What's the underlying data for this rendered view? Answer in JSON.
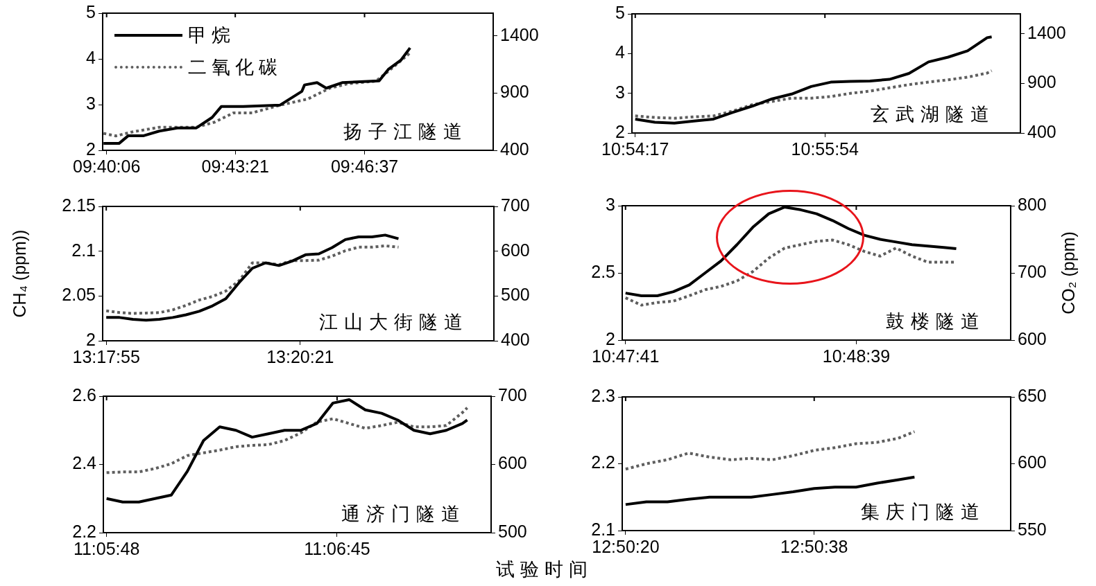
{
  "chart_data": [
    {
      "type": "line",
      "legend": "top left",
      "annotations": [
        "扬子江隧道"
      ],
      "xlim": [
        9.66667,
        9.83111
      ],
      "xticks": [
        {
          "value": 9.66833,
          "label": "09:40:06"
        },
        {
          "value": 9.7225,
          "label": "09:43:21"
        },
        {
          "value": 9.77694,
          "label": "09:46:37"
        }
      ],
      "ylim": [
        2,
        5
      ],
      "yticks": [
        2,
        3,
        4,
        5
      ],
      "y2lim": [
        400,
        1600
      ],
      "y2ticks": [
        400,
        900,
        1400
      ],
      "series": [
        {
          "name": "甲烷",
          "color": "#000000",
          "line_style": "solid",
          "x": [
            9.66703,
            9.67355,
            9.67747,
            9.68397,
            9.6905,
            9.69833,
            9.70611,
            9.71278,
            9.71667,
            9.72583,
            9.74139,
            9.75056,
            9.75167,
            9.75694,
            9.76083,
            9.7675,
            9.78306,
            9.78694,
            9.79222,
            9.79611
          ],
          "values": [
            2.15,
            2.15,
            2.32,
            2.32,
            2.42,
            2.49,
            2.49,
            2.72,
            2.96,
            2.96,
            2.99,
            3.29,
            3.43,
            3.48,
            3.36,
            3.48,
            3.52,
            3.77,
            3.97,
            4.24
          ]
        },
        {
          "name": "二氧化碳",
          "color": "#5e5e5e",
          "line_style": "dotted",
          "axis": "y2",
          "x": [
            9.66703,
            9.67222,
            9.67878,
            9.6905,
            9.70611,
            9.71389,
            9.72181,
            9.72964,
            9.74139,
            9.75306,
            9.76222,
            9.77,
            9.78167,
            9.78694,
            9.79611
          ],
          "values": [
            548,
            526,
            559,
            602,
            602,
            647,
            728,
            728,
            795,
            849,
            943,
            983,
            1005,
            1091,
            1252
          ]
        }
      ]
    },
    {
      "type": "line",
      "annotations": [
        "玄武湖隧道"
      ],
      "xlim": [
        10.90425,
        10.95944
      ],
      "xticks": [
        {
          "value": 10.90472,
          "label": "10:54:17"
        },
        {
          "value": 10.93167,
          "label": "10:55:54"
        }
      ],
      "ylim": [
        2,
        5
      ],
      "yticks": [
        2,
        3,
        4,
        5
      ],
      "y2lim": [
        400,
        1600
      ],
      "y2ticks": [
        400,
        900,
        1400
      ],
      "x": [
        10.90472,
        10.9075,
        10.91028,
        10.91306,
        10.91583,
        10.91861,
        10.92139,
        10.92417,
        10.92694,
        10.92972,
        10.9325,
        10.93528,
        10.93806,
        10.94083,
        10.94361,
        10.94639,
        10.94917,
        10.95194,
        10.95472,
        10.95536
      ],
      "series": [
        {
          "color": "#000000",
          "line_style": "solid",
          "values": [
            2.35,
            2.27,
            2.25,
            2.3,
            2.35,
            2.52,
            2.68,
            2.86,
            2.98,
            3.17,
            3.28,
            3.3,
            3.31,
            3.35,
            3.5,
            3.79,
            3.91,
            4.07,
            4.4,
            4.42
          ]
        },
        {
          "color": "#5e5e5e",
          "line_style": "dotted",
          "axis": "y2",
          "values": [
            572,
            556,
            549,
            562,
            572,
            621,
            686,
            718,
            751,
            751,
            767,
            799,
            822,
            855,
            887,
            913,
            936,
            962,
            1004,
            1027
          ]
        }
      ]
    },
    {
      "type": "line",
      "ylabel": "CH₄ (ppm))",
      "annotations": [
        "江山大街隧道"
      ],
      "xlim": [
        13.29786,
        13.37967
      ],
      "xticks": [
        {
          "value": 13.29861,
          "label": "13:17:55"
        },
        {
          "value": 13.33917,
          "label": "13:20:21"
        }
      ],
      "ylim": [
        2,
        2.15
      ],
      "yticks": [
        2,
        2.05,
        2.1,
        2.15
      ],
      "y2lim": [
        400,
        700
      ],
      "y2ticks": [
        400,
        500,
        600,
        700
      ],
      "x": [
        13.29861,
        13.30139,
        13.30417,
        13.30694,
        13.30972,
        13.3125,
        13.31528,
        13.31806,
        13.32083,
        13.32361,
        13.32639,
        13.32917,
        13.33194,
        13.33472,
        13.3375,
        13.34028,
        13.34306,
        13.34583,
        13.34861,
        13.35139,
        13.35417,
        13.35694,
        13.35972
      ],
      "series": [
        {
          "color": "#000000",
          "line_style": "solid",
          "values": [
            2.026,
            2.026,
            2.024,
            2.023,
            2.024,
            2.026,
            2.029,
            2.033,
            2.039,
            2.047,
            2.065,
            2.081,
            2.087,
            2.084,
            2.089,
            2.096,
            2.097,
            2.104,
            2.113,
            2.116,
            2.116,
            2.118,
            2.114
          ]
        },
        {
          "color": "#5e5e5e",
          "line_style": "dotted",
          "axis": "y2",
          "values": [
            467,
            463,
            461,
            462,
            463,
            469,
            479,
            491,
            499,
            511,
            534,
            574,
            574,
            570,
            579,
            579,
            580,
            589,
            601,
            609,
            609,
            612,
            609
          ]
        }
      ]
    },
    {
      "type": "line",
      "y2label": "CO₂ (ppm)",
      "annotations": [
        "鼓楼隧道"
      ],
      "xlim": [
        10.79449,
        10.82161
      ],
      "xticks": [
        {
          "value": 10.79472,
          "label": "10:47:41"
        },
        {
          "value": 10.81083,
          "label": "10:48:39"
        }
      ],
      "ylim": [
        2,
        3
      ],
      "yticks": [
        2,
        2.5,
        3
      ],
      "y2lim": [
        600,
        800
      ],
      "y2ticks": [
        600,
        700,
        800
      ],
      "x": [
        10.79472,
        10.79583,
        10.79694,
        10.79806,
        10.79917,
        10.80028,
        10.80139,
        10.8025,
        10.80361,
        10.80472,
        10.80583,
        10.80694,
        10.80806,
        10.80917,
        10.81028,
        10.81139,
        10.8125,
        10.81361,
        10.81472,
        10.81583,
        10.81694,
        10.81781
      ],
      "series": [
        {
          "color": "#000000",
          "line_style": "solid",
          "values": [
            2.35,
            2.33,
            2.33,
            2.36,
            2.41,
            2.5,
            2.59,
            2.71,
            2.84,
            2.94,
            2.99,
            2.97,
            2.94,
            2.89,
            2.83,
            2.78,
            2.75,
            2.73,
            2.71,
            2.7,
            2.69,
            2.68
          ]
        },
        {
          "color": "#5e5e5e",
          "line_style": "dotted",
          "axis": "y2",
          "values": [
            663,
            652,
            656,
            658,
            666,
            675,
            680,
            688,
            702,
            722,
            737,
            742,
            747,
            749,
            742,
            732,
            725,
            737,
            725,
            716,
            716,
            716
          ]
        }
      ]
    },
    {
      "type": "line",
      "xlabel": "试验时间",
      "annotations": [
        "通济门隧道"
      ],
      "xlim": [
        11.09645,
        11.12308
      ],
      "xticks": [
        {
          "value": 11.09667,
          "label": "11:05:48"
        },
        {
          "value": 11.1125,
          "label": "11:06:45"
        }
      ],
      "ylim": [
        2.2,
        2.6
      ],
      "yticks": [
        2.2,
        2.4,
        2.6
      ],
      "y2lim": [
        500,
        700
      ],
      "y2ticks": [
        500,
        600,
        700
      ],
      "x": [
        11.09667,
        11.09778,
        11.09889,
        11.1,
        11.10111,
        11.10222,
        11.10333,
        11.10444,
        11.10556,
        11.10667,
        11.10778,
        11.10889,
        11.11,
        11.11111,
        11.11222,
        11.11333,
        11.11444,
        11.11556,
        11.11667,
        11.11778,
        11.11889,
        11.12,
        11.12111,
        11.12144
      ],
      "series": [
        {
          "color": "#000000",
          "line_style": "solid",
          "values": [
            2.3,
            2.29,
            2.29,
            2.3,
            2.31,
            2.38,
            2.47,
            2.51,
            2.5,
            2.48,
            2.49,
            2.5,
            2.5,
            2.52,
            2.58,
            2.59,
            2.56,
            2.55,
            2.53,
            2.5,
            2.49,
            2.5,
            2.52,
            2.53
          ]
        },
        {
          "color": "#5e5e5e",
          "line_style": "dotted",
          "axis": "y2",
          "values": [
            588,
            589,
            589,
            594,
            601,
            613,
            617,
            621,
            626,
            628,
            629,
            635,
            646,
            662,
            667,
            660,
            653,
            657,
            662,
            655,
            655,
            657,
            676,
            683
          ]
        }
      ]
    },
    {
      "type": "line",
      "annotations": [
        "集庆门隧道"
      ],
      "xlim": [
        12.8388,
        12.8491
      ],
      "xticks": [
        {
          "value": 12.83889,
          "label": "12:50:20"
        },
        {
          "value": 12.84389,
          "label": "12:50:38"
        }
      ],
      "ylim": [
        2.1,
        2.3
      ],
      "yticks": [
        2.1,
        2.2,
        2.3
      ],
      "y2lim": [
        550,
        650
      ],
      "y2ticks": [
        550,
        600,
        650
      ],
      "x": [
        12.83889,
        12.83944,
        12.84,
        12.84056,
        12.84111,
        12.84167,
        12.84222,
        12.84278,
        12.84333,
        12.84389,
        12.84444,
        12.845,
        12.84556,
        12.84611,
        12.84655
      ],
      "series": [
        {
          "color": "#000000",
          "line_style": "solid",
          "values": [
            2.139,
            2.143,
            2.143,
            2.147,
            2.15,
            2.15,
            2.15,
            2.154,
            2.158,
            2.163,
            2.165,
            2.165,
            2.171,
            2.176,
            2.18
          ]
        },
        {
          "color": "#5e5e5e",
          "line_style": "dotted",
          "axis": "y2",
          "values": [
            596,
            600,
            603,
            608,
            605,
            603,
            604,
            603,
            606,
            610,
            612,
            615,
            616,
            619,
            624
          ]
        }
      ]
    }
  ]
}
